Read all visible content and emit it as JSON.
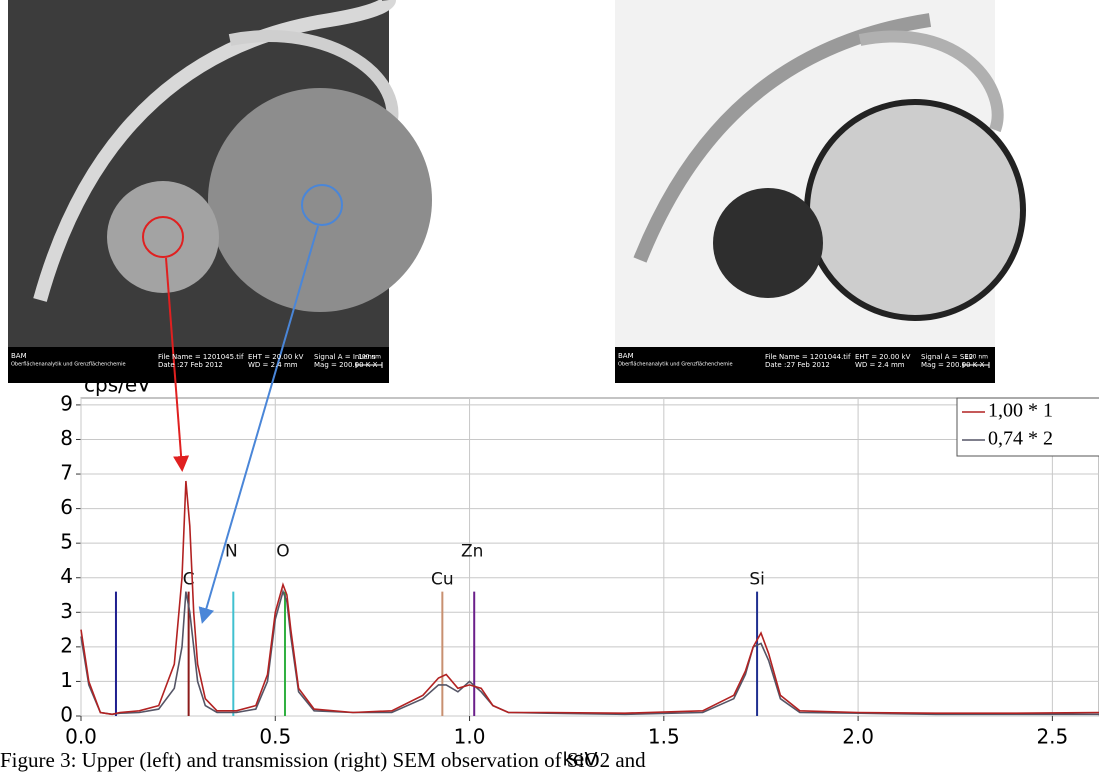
{
  "images": [
    {
      "bam": "BAM",
      "institute": "Oberflächenanalytik und Grenzflächenchemie",
      "file": "File Name = 1201045.tif",
      "date": "Date :27 Feb 2012",
      "eht": "EHT = 20.00 kV",
      "wd": "WD = 2.4 mm",
      "signal": "Signal A = InLens",
      "mag": "Mag = 200.00 K X",
      "scale": "100 nm"
    },
    {
      "bam": "BAM",
      "institute": "Oberflächenanalytik und Grenzflächenchemie",
      "file": "File Name = 1201044.tif",
      "date": "Date :27 Feb 2012",
      "eht": "EHT = 20.00 kV",
      "wd": "WD = 2.4 mm",
      "signal": "Signal A = SE2",
      "mag": "Mag = 200.00 K X",
      "scale": "100 nm"
    }
  ],
  "chart_data": {
    "type": "line",
    "ylabel": "cps/eV",
    "xlabel": "keV",
    "x": [
      0,
      0.02,
      0.05,
      0.08,
      0.1,
      0.15,
      0.2,
      0.24,
      0.26,
      0.27,
      0.28,
      0.29,
      0.3,
      0.32,
      0.35,
      0.4,
      0.45,
      0.48,
      0.5,
      0.52,
      0.53,
      0.54,
      0.56,
      0.6,
      0.7,
      0.8,
      0.88,
      0.92,
      0.94,
      0.97,
      1.0,
      1.03,
      1.06,
      1.1,
      1.2,
      1.4,
      1.6,
      1.68,
      1.71,
      1.73,
      1.75,
      1.77,
      1.8,
      1.85,
      2.0,
      2.2,
      2.4,
      2.62
    ],
    "series": [
      {
        "name": "1,00 * 1",
        "color": "#b22222",
        "values": [
          2.5,
          1.0,
          0.1,
          0.05,
          0.1,
          0.15,
          0.3,
          1.5,
          4.0,
          6.8,
          5.5,
          3.0,
          1.5,
          0.5,
          0.15,
          0.15,
          0.3,
          1.2,
          3.0,
          3.8,
          3.5,
          2.5,
          0.8,
          0.2,
          0.1,
          0.15,
          0.6,
          1.1,
          1.2,
          0.8,
          0.9,
          0.8,
          0.3,
          0.1,
          0.1,
          0.08,
          0.15,
          0.6,
          1.3,
          2.0,
          2.4,
          1.8,
          0.6,
          0.15,
          0.1,
          0.08,
          0.08,
          0.1
        ]
      },
      {
        "name": "0,74 * 2",
        "color": "#555566",
        "values": [
          2.3,
          0.9,
          0.1,
          0.05,
          0.08,
          0.1,
          0.2,
          0.8,
          2.0,
          3.6,
          3.0,
          2.0,
          1.0,
          0.3,
          0.1,
          0.1,
          0.2,
          1.0,
          2.8,
          3.6,
          3.3,
          2.3,
          0.7,
          0.15,
          0.1,
          0.1,
          0.5,
          0.9,
          0.9,
          0.7,
          1.0,
          0.7,
          0.3,
          0.1,
          0.08,
          0.05,
          0.1,
          0.5,
          1.2,
          2.0,
          2.1,
          1.6,
          0.5,
          0.1,
          0.08,
          0.05,
          0.05,
          0.05
        ]
      }
    ],
    "element_lines": [
      {
        "energy": 0.09,
        "height": 3.6,
        "color": "#1f1f8f"
      },
      {
        "label": "C",
        "energy": 0.277,
        "height": 3.6,
        "color": "#8b1a1a"
      },
      {
        "label": "N",
        "energy": 0.392,
        "height": 3.6,
        "color": "#40c0d0"
      },
      {
        "label": "O",
        "energy": 0.525,
        "height": 3.6,
        "color": "#30b040"
      },
      {
        "label": "Cu",
        "energy": 0.93,
        "height": 3.6,
        "color": "#c89070"
      },
      {
        "label": "Zn",
        "energy": 1.012,
        "height": 3.6,
        "color": "#6a1f8a"
      },
      {
        "label": "Si",
        "energy": 1.74,
        "height": 3.6,
        "color": "#1f2f8f"
      }
    ],
    "xlim": [
      0,
      2.62
    ],
    "ylim": [
      0,
      9.2
    ],
    "xticks": [
      {
        "value": 0,
        "label": "0.0"
      },
      0.5,
      {
        "value": 1,
        "label": "1.0"
      },
      1.5,
      {
        "value": 2,
        "label": "2.0"
      },
      2.5
    ],
    "yticks": [
      0,
      1,
      2,
      3,
      4,
      5,
      6,
      7,
      8,
      9
    ],
    "grid": true
  },
  "caption": "Figure 3: Upper (left) and transmission (right) SEM observation of SiO2 and"
}
